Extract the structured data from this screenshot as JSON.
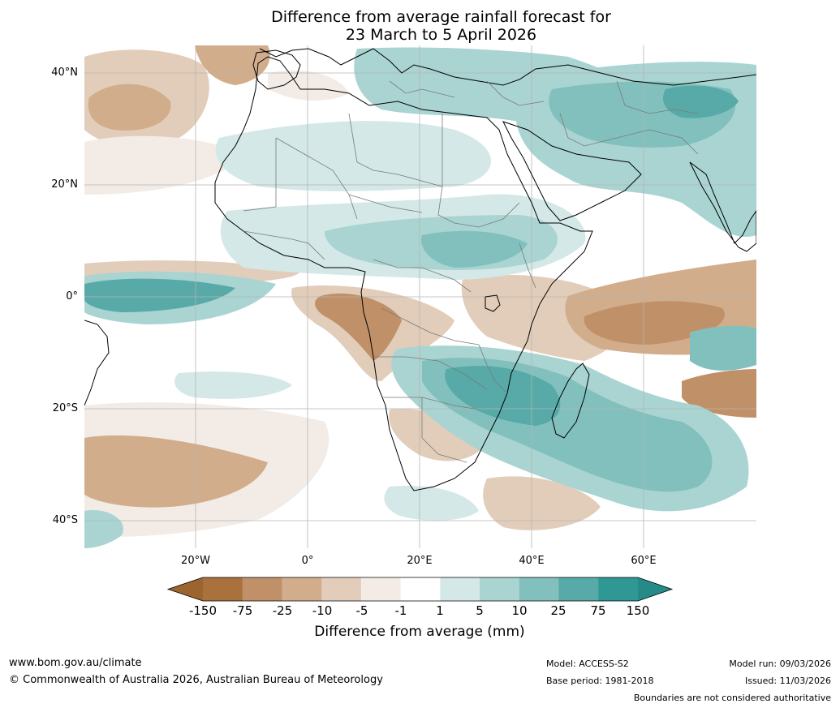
{
  "title": {
    "line1": "Difference from average rainfall forecast for",
    "line2": "23 March to 5 April 2026"
  },
  "map": {
    "lat_labels": [
      "40°N",
      "20°N",
      "0°",
      "20°S",
      "40°S"
    ],
    "lon_labels": [
      "20°W",
      "0°",
      "20°E",
      "40°E",
      "60°E"
    ],
    "lat_values": [
      40,
      20,
      0,
      -20,
      -40
    ],
    "lon_values": [
      -20,
      0,
      20,
      40,
      60
    ]
  },
  "colorbar": {
    "title": "Difference from average (mm)",
    "ticks": [
      "-150",
      "-75",
      "-25",
      "-10",
      "-5",
      "-1",
      "1",
      "5",
      "10",
      "25",
      "75",
      "150"
    ],
    "colors": [
      "#a9713b",
      "#c09168",
      "#d2ad8b",
      "#e2cdba",
      "#f3ece6",
      "#ffffff",
      "#d3e8e7",
      "#a9d4d2",
      "#82c0bd",
      "#57aaa7",
      "#2f9794"
    ],
    "under_color": "#9c642e",
    "over_color": "#268a88"
  },
  "footer": {
    "website": "www.bom.gov.au/climate",
    "copyright": "© Commonwealth of Australia 2026, Australian Bureau of Meteorology",
    "model": "Model: ACCESS-S2",
    "base_period": "Base period: 1981-2018",
    "model_run": "Model run: 09/03/2026",
    "issued": "Issued: 11/03/2026",
    "disclaimer": "Boundaries are not considered authoritative"
  }
}
